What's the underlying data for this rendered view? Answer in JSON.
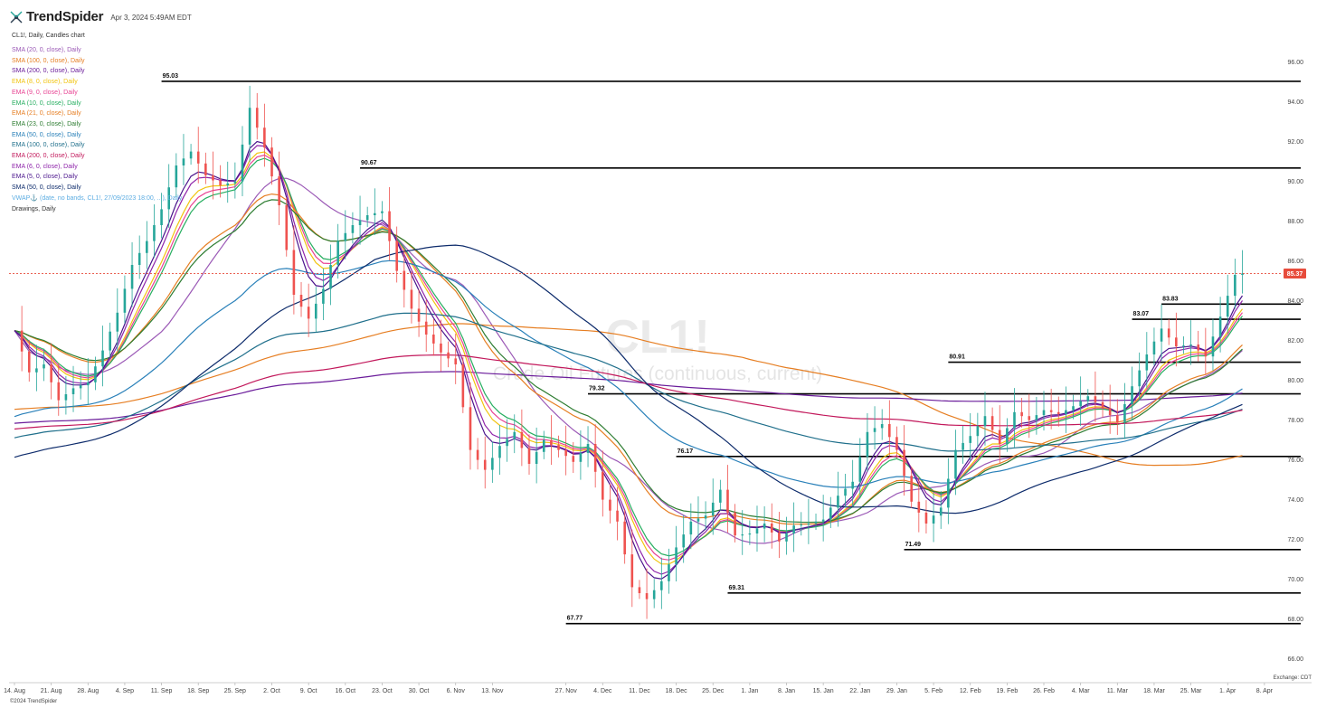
{
  "header": {
    "brand": "TrendSpider",
    "date": "Apr 3, 2024 5:49AM EDT",
    "symbol_line": "CL1!, Daily, Candles chart"
  },
  "legend": [
    {
      "text": "SMA (20, 0, close), Daily",
      "color": "#9b59b6"
    },
    {
      "text": "SMA (100, 0, close), Daily",
      "color": "#e67e22"
    },
    {
      "text": "SMA (200, 0, close), Daily",
      "color": "#6a1b9a"
    },
    {
      "text": "EMA (8, 0, close), Daily",
      "color": "#f1c40f"
    },
    {
      "text": "EMA (9, 0, close), Daily",
      "color": "#e84393"
    },
    {
      "text": "EMA (10, 0, close), Daily",
      "color": "#27ae60"
    },
    {
      "text": "EMA (21, 0, close), Daily",
      "color": "#e67e22"
    },
    {
      "text": "EMA (23, 0, close), Daily",
      "color": "#2e7d32"
    },
    {
      "text": "EMA (50, 0, close), Daily",
      "color": "#2980b9"
    },
    {
      "text": "EMA (100, 0, close), Daily",
      "color": "#1f6f8b"
    },
    {
      "text": "EMA (200, 0, close), Daily",
      "color": "#c2185b"
    },
    {
      "text": "EMA (6, 0, close), Daily",
      "color": "#8e24aa"
    },
    {
      "text": "EMA (5, 0, close), Daily",
      "color": "#4a148c"
    },
    {
      "text": "SMA (50, 0, close), Daily",
      "color": "#0d2b6b"
    },
    {
      "text": "VWAP⚓ (date, no bands, CL1!, 27/09/2023 18:00, ...), Daily",
      "color": "#5dade2"
    },
    {
      "text": "Drawings, Daily",
      "color": "#333333"
    }
  ],
  "watermark": {
    "symbol": "CL1!",
    "name": "Crude Oil Futures (continuous, current)"
  },
  "footer": {
    "copyright": "©2024 TrendSpider",
    "exchange": "Exchange: CDT"
  },
  "colors": {
    "up": "#26a69a",
    "down": "#ef5350",
    "level_line": "#000000",
    "last_price": "#e74c3c"
  },
  "chart_data": {
    "type": "candlestick",
    "title": "CL1!, Daily, Candles chart",
    "y_ticks": [
      66,
      68,
      70,
      72,
      74,
      76,
      78,
      80,
      82,
      84,
      86,
      88,
      90,
      92,
      94,
      96
    ],
    "y_tick_labels": [
      "66.00",
      "68.00",
      "70.00",
      "72.00",
      "74.00",
      "76.00",
      "78.00",
      "80.00",
      "82.00",
      "84.00",
      "86.00",
      "88.00",
      "90.00",
      "92.00",
      "94.00",
      "96.00"
    ],
    "ylim": [
      64.8,
      97.3
    ],
    "x_labels": [
      "14. Aug",
      "21. Aug",
      "28. Aug",
      "4. Sep",
      "11. Sep",
      "18. Sep",
      "25. Sep",
      "2. Oct",
      "9. Oct",
      "16. Oct",
      "23. Oct",
      "30. Oct",
      "6. Nov",
      "13. Nov",
      "27. Nov",
      "4. Dec",
      "11. Dec",
      "18. Dec",
      "25. Dec",
      "1. Jan",
      "8. Jan",
      "15. Jan",
      "22. Jan",
      "29. Jan",
      "5. Feb",
      "12. Feb",
      "19. Feb",
      "26. Feb",
      "4. Mar",
      "11. Mar",
      "18. Mar",
      "25. Mar",
      "1. Apr",
      "8. Apr"
    ],
    "x_label_day_index": [
      0,
      5,
      10,
      15,
      20,
      25,
      30,
      35,
      40,
      45,
      50,
      55,
      60,
      65,
      75,
      80,
      85,
      90,
      95,
      100,
      105,
      110,
      115,
      120,
      125,
      130,
      135,
      140,
      145,
      150,
      155,
      160,
      165,
      170
    ],
    "last_price": 85.37,
    "last_price_label": "85.37",
    "levels": [
      {
        "label": "95.03",
        "value": 95.03,
        "from_day": 20
      },
      {
        "label": "90.67",
        "value": 90.67,
        "from_day": 47
      },
      {
        "label": "83.83",
        "value": 83.83,
        "from_day": 156
      },
      {
        "label": "83.07",
        "value": 83.07,
        "from_day": 152
      },
      {
        "label": "80.91",
        "value": 80.91,
        "from_day": 127
      },
      {
        "label": "79.32",
        "value": 79.32,
        "from_day": 78
      },
      {
        "label": "76.17",
        "value": 76.17,
        "from_day": 90
      },
      {
        "label": "71.49",
        "value": 71.49,
        "from_day": 121
      },
      {
        "label": "69.31",
        "value": 69.31,
        "from_day": 97
      },
      {
        "label": "67.77",
        "value": 67.77,
        "from_day": 75
      }
    ],
    "closes": [
      {
        "day": 0,
        "close": 82.5
      },
      {
        "day": 2,
        "close": 80.4
      },
      {
        "day": 4,
        "close": 80.8
      },
      {
        "day": 6,
        "close": 79.0
      },
      {
        "day": 8,
        "close": 79.6
      },
      {
        "day": 10,
        "close": 79.9
      },
      {
        "day": 12,
        "close": 81.5
      },
      {
        "day": 14,
        "close": 83.4
      },
      {
        "day": 16,
        "close": 85.8
      },
      {
        "day": 18,
        "close": 87.0
      },
      {
        "day": 20,
        "close": 88.6
      },
      {
        "day": 22,
        "close": 90.8
      },
      {
        "day": 24,
        "close": 91.5
      },
      {
        "day": 26,
        "close": 90.3
      },
      {
        "day": 28,
        "close": 89.8
      },
      {
        "day": 30,
        "close": 90.0
      },
      {
        "day": 32,
        "close": 93.7
      },
      {
        "day": 34,
        "close": 91.7
      },
      {
        "day": 36,
        "close": 88.8
      },
      {
        "day": 38,
        "close": 84.3
      },
      {
        "day": 40,
        "close": 83.1
      },
      {
        "day": 42,
        "close": 84.6
      },
      {
        "day": 44,
        "close": 87.0
      },
      {
        "day": 46,
        "close": 87.8
      },
      {
        "day": 48,
        "close": 88.3
      },
      {
        "day": 50,
        "close": 88.5
      },
      {
        "day": 52,
        "close": 85.5
      },
      {
        "day": 54,
        "close": 83.6
      },
      {
        "day": 56,
        "close": 82.3
      },
      {
        "day": 58,
        "close": 81.4
      },
      {
        "day": 60,
        "close": 80.8
      },
      {
        "day": 62,
        "close": 76.5
      },
      {
        "day": 64,
        "close": 75.5
      },
      {
        "day": 66,
        "close": 76.7
      },
      {
        "day": 68,
        "close": 77.4
      },
      {
        "day": 70,
        "close": 75.8
      },
      {
        "day": 72,
        "close": 77.0
      },
      {
        "day": 74,
        "close": 76.5
      },
      {
        "day": 76,
        "close": 75.9
      },
      {
        "day": 78,
        "close": 76.8
      },
      {
        "day": 80,
        "close": 74.0
      },
      {
        "day": 82,
        "close": 72.9
      },
      {
        "day": 84,
        "close": 69.6
      },
      {
        "day": 86,
        "close": 69.0
      },
      {
        "day": 88,
        "close": 69.9
      },
      {
        "day": 90,
        "close": 71.6
      },
      {
        "day": 92,
        "close": 72.9
      },
      {
        "day": 94,
        "close": 73.2
      },
      {
        "day": 96,
        "close": 74.5
      },
      {
        "day": 98,
        "close": 72.2
      },
      {
        "day": 100,
        "close": 72.3
      },
      {
        "day": 102,
        "close": 72.8
      },
      {
        "day": 104,
        "close": 71.9
      },
      {
        "day": 106,
        "close": 72.7
      },
      {
        "day": 108,
        "close": 72.8
      },
      {
        "day": 110,
        "close": 73.0
      },
      {
        "day": 112,
        "close": 74.2
      },
      {
        "day": 114,
        "close": 74.9
      },
      {
        "day": 116,
        "close": 77.4
      },
      {
        "day": 118,
        "close": 77.8
      },
      {
        "day": 120,
        "close": 76.5
      },
      {
        "day": 122,
        "close": 73.9
      },
      {
        "day": 124,
        "close": 72.8
      },
      {
        "day": 126,
        "close": 73.6
      },
      {
        "day": 128,
        "close": 76.5
      },
      {
        "day": 130,
        "close": 77.2
      },
      {
        "day": 132,
        "close": 78.2
      },
      {
        "day": 134,
        "close": 76.8
      },
      {
        "day": 136,
        "close": 78.4
      },
      {
        "day": 138,
        "close": 78.0
      },
      {
        "day": 140,
        "close": 78.5
      },
      {
        "day": 142,
        "close": 78.3
      },
      {
        "day": 144,
        "close": 78.7
      },
      {
        "day": 146,
        "close": 79.2
      },
      {
        "day": 148,
        "close": 78.6
      },
      {
        "day": 150,
        "close": 77.9
      },
      {
        "day": 152,
        "close": 79.7
      },
      {
        "day": 154,
        "close": 81.3
      },
      {
        "day": 156,
        "close": 82.6
      },
      {
        "day": 158,
        "close": 81.7
      },
      {
        "day": 160,
        "close": 81.8
      },
      {
        "day": 162,
        "close": 81.2
      },
      {
        "day": 164,
        "close": 83.2
      },
      {
        "day": 166,
        "close": 85.3
      },
      {
        "day": 167,
        "close": 85.37
      }
    ]
  }
}
